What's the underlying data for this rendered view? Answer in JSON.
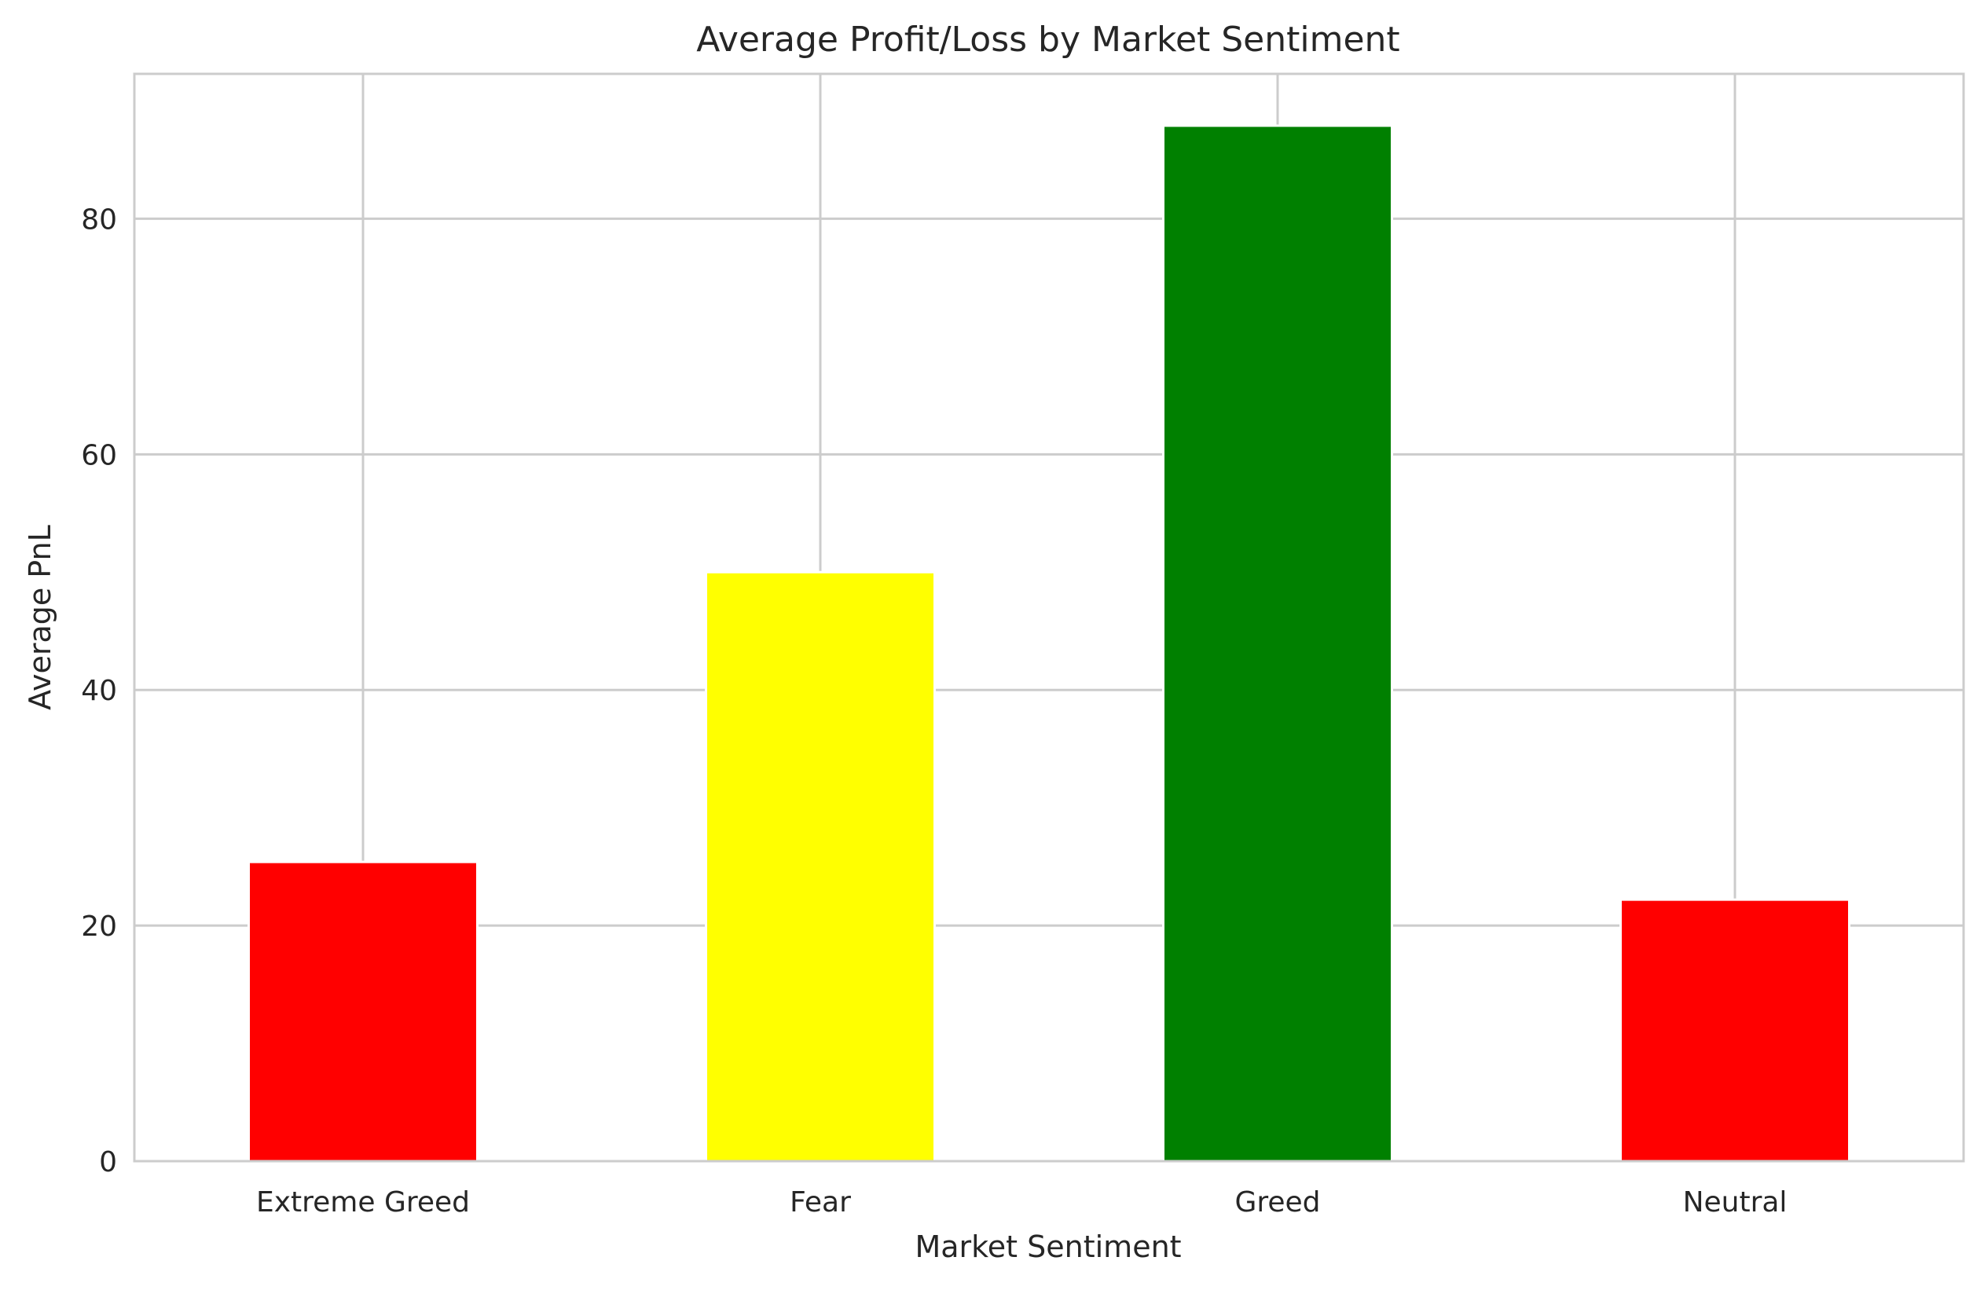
{
  "chart_data": {
    "type": "bar",
    "title": "Average Profit/Loss by Market Sentiment",
    "xlabel": "Market Sentiment",
    "ylabel": "Average PnL",
    "categories": [
      "Extreme Greed",
      "Fear",
      "Greed",
      "Neutral"
    ],
    "values": [
      25.4,
      50.0,
      87.9,
      22.2
    ],
    "colors": [
      "#ff0000",
      "#ffff00",
      "#008000",
      "#ff0000"
    ],
    "ylim": [
      0,
      92.3
    ],
    "yticks": [
      0,
      20,
      40,
      60,
      80
    ],
    "grid": true,
    "legend": "none"
  }
}
